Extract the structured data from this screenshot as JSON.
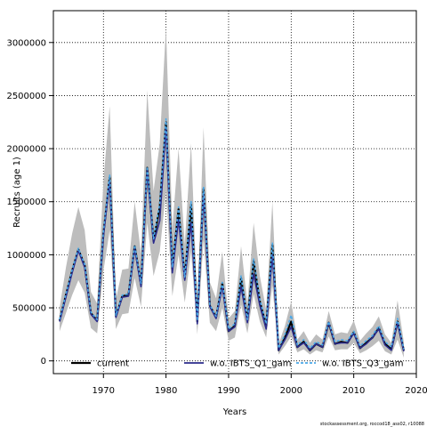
{
  "chart_data": {
    "type": "line",
    "xlabel": "Years",
    "ylabel": "Recruits (age 1)",
    "xlim": [
      1962,
      2020
    ],
    "ylim": [
      -120000,
      3300000
    ],
    "x_ticks": [
      1970,
      1980,
      1990,
      2000,
      2010,
      2020
    ],
    "x_tick_labels": [
      "1970",
      "1980",
      "1990",
      "2000",
      "2010",
      "2020"
    ],
    "y_ticks": [
      0,
      500000,
      1000000,
      1500000,
      2000000,
      2500000,
      3000000
    ],
    "y_tick_labels": [
      "0",
      "500000",
      "1000000",
      "1500000",
      "2000000",
      "2500000",
      "3000000"
    ],
    "grid": true,
    "legend_position": "bottom",
    "x": [
      1963,
      1964,
      1965,
      1966,
      1967,
      1968,
      1969,
      1970,
      1971,
      1972,
      1973,
      1974,
      1975,
      1976,
      1977,
      1978,
      1979,
      1980,
      1981,
      1982,
      1983,
      1984,
      1985,
      1986,
      1987,
      1988,
      1989,
      1990,
      1991,
      1992,
      1993,
      1994,
      1995,
      1996,
      1997,
      1998,
      1999,
      2000,
      2001,
      2002,
      2003,
      2004,
      2005,
      2006,
      2007,
      2008,
      2009,
      2010,
      2011,
      2012,
      2013,
      2014,
      2015,
      2016,
      2017,
      2018
    ],
    "series": [
      {
        "name": "current",
        "color": "#000000",
        "dash": "solid",
        "values": [
          380000,
          620000,
          850000,
          1050000,
          900000,
          450000,
          380000,
          1200000,
          1730000,
          420000,
          610000,
          620000,
          1080000,
          720000,
          1820000,
          1130000,
          1450000,
          2250000,
          870000,
          1430000,
          780000,
          1470000,
          370000,
          1620000,
          520000,
          410000,
          730000,
          280000,
          330000,
          780000,
          380000,
          940000,
          560000,
          330000,
          1090000,
          100000,
          220000,
          370000,
          130000,
          180000,
          100000,
          160000,
          130000,
          360000,
          160000,
          180000,
          170000,
          270000,
          120000,
          170000,
          220000,
          310000,
          160000,
          110000,
          370000,
          100000
        ],
        "lower": [
          280000,
          450000,
          620000,
          760000,
          640000,
          310000,
          260000,
          850000,
          1230000,
          300000,
          440000,
          450000,
          780000,
          510000,
          1300000,
          800000,
          1030000,
          1600000,
          610000,
          1000000,
          550000,
          1030000,
          250000,
          1140000,
          360000,
          280000,
          500000,
          190000,
          220000,
          530000,
          260000,
          630000,
          370000,
          220000,
          710000,
          60000,
          140000,
          230000,
          80000,
          110000,
          60000,
          100000,
          80000,
          230000,
          100000,
          110000,
          110000,
          170000,
          70000,
          100000,
          140000,
          190000,
          90000,
          60000,
          200000,
          30000
        ],
        "upper": [
          500000,
          880000,
          1200000,
          1450000,
          1230000,
          650000,
          540000,
          1700000,
          2400000,
          580000,
          860000,
          870000,
          1500000,
          1010000,
          2550000,
          1600000,
          2050000,
          3150000,
          1250000,
          2000000,
          1100000,
          2050000,
          530000,
          2200000,
          740000,
          590000,
          1030000,
          400000,
          470000,
          1080000,
          540000,
          1300000,
          800000,
          480000,
          1500000,
          160000,
          330000,
          560000,
          200000,
          280000,
          170000,
          250000,
          200000,
          470000,
          250000,
          270000,
          260000,
          380000,
          190000,
          260000,
          320000,
          420000,
          250000,
          170000,
          570000,
          180000
        ]
      },
      {
        "name": "w.o. IBTS_Q1_gam",
        "color": "#2b2b8c",
        "dash": "solid",
        "values": [
          370000,
          600000,
          830000,
          1040000,
          880000,
          440000,
          370000,
          1180000,
          1700000,
          410000,
          600000,
          610000,
          1060000,
          700000,
          1800000,
          1110000,
          1320000,
          2200000,
          830000,
          1330000,
          760000,
          1300000,
          350000,
          1580000,
          510000,
          400000,
          700000,
          280000,
          320000,
          700000,
          360000,
          820000,
          520000,
          300000,
          1000000,
          100000,
          200000,
          320000,
          130000,
          170000,
          100000,
          160000,
          130000,
          360000,
          160000,
          170000,
          170000,
          260000,
          120000,
          160000,
          220000,
          300000,
          150000,
          100000,
          360000,
          90000
        ]
      },
      {
        "name": "w.o. IBTS_Q3_gam",
        "color": "#4aa8e8",
        "dash": "dashed",
        "values": [
          390000,
          630000,
          860000,
          1060000,
          910000,
          460000,
          390000,
          1220000,
          1750000,
          430000,
          620000,
          630000,
          1090000,
          730000,
          1830000,
          1150000,
          1480000,
          2280000,
          880000,
          1450000,
          790000,
          1500000,
          380000,
          1640000,
          530000,
          420000,
          740000,
          300000,
          350000,
          800000,
          390000,
          960000,
          580000,
          350000,
          1110000,
          120000,
          250000,
          430000,
          150000,
          200000,
          120000,
          180000,
          150000,
          370000,
          180000,
          200000,
          190000,
          280000,
          140000,
          190000,
          240000,
          330000,
          180000,
          130000,
          400000,
          110000
        ]
      }
    ]
  },
  "footer": "stockassessment.org, roccod18_ass02, r10088"
}
